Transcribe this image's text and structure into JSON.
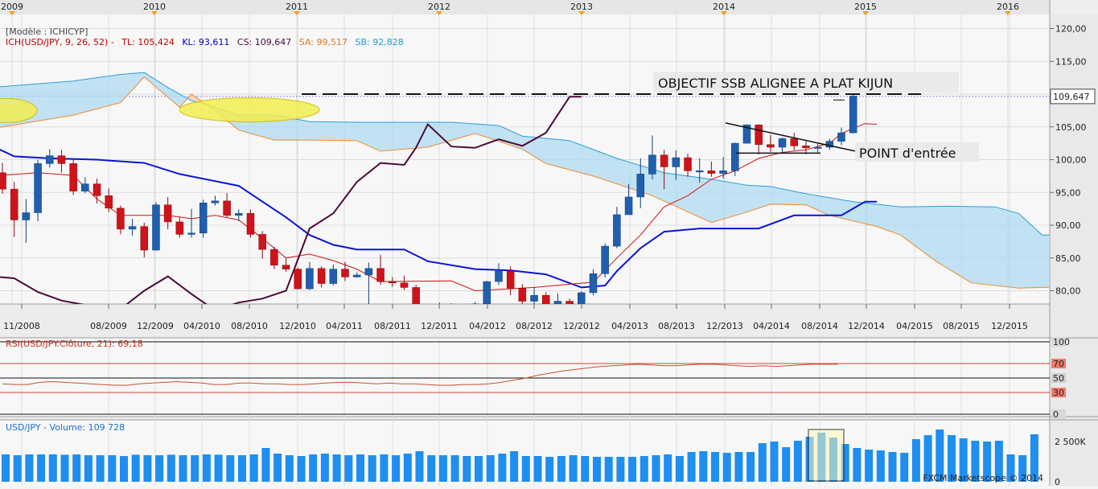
{
  "chart_data": {
    "type": "candlestick",
    "instrument": "USD/JPY",
    "timeframe_top_labels": [
      "2009",
      "2010",
      "2011",
      "2012",
      "2013",
      "2014",
      "2015",
      "2016"
    ],
    "x_tick_labels": [
      "11/2008",
      "08/2009",
      "12/2009",
      "04/2010",
      "08/2010",
      "12/2010",
      "04/2011",
      "08/2011",
      "12/2011",
      "04/2012",
      "08/2012",
      "12/2012",
      "04/2013",
      "08/2013",
      "12/2013",
      "04/2014",
      "08/2014",
      "12/2014",
      "04/2015",
      "08/2015",
      "12/2015"
    ],
    "price_axis": {
      "ticks": [
        "120,00",
        "115,00",
        "110,00",
        "105,00",
        "100,00",
        "95,00",
        "90,00",
        "85,00",
        "80,00"
      ],
      "ylim": [
        77.5,
        121.5
      ],
      "current_label": "109,647"
    },
    "legend": {
      "model": "[Modèle : ICHICYP]",
      "ich": "ICH(USD/JPY, 9, 26, 52) -",
      "tl": "TL: 105,424",
      "kl": "KL: 93,611",
      "cs": "CS: 109,647",
      "sa": "SA: 99,517",
      "sb": "SB: 92,828"
    },
    "candles": [
      [
        0,
        98,
        95.5,
        99.5,
        94.8
      ],
      [
        1,
        95.5,
        90.8,
        96.6,
        88.2
      ],
      [
        2,
        90.8,
        91.9,
        94,
        87.3
      ],
      [
        3,
        91.9,
        99.4,
        100,
        90.6
      ],
      [
        4,
        99.4,
        100.6,
        101.6,
        98.8
      ],
      [
        5,
        100.6,
        99.4,
        101.5,
        98
      ],
      [
        6,
        99.4,
        95.2,
        100,
        94.6
      ],
      [
        7,
        95.2,
        96.3,
        97.3,
        94.9
      ],
      [
        8,
        96.3,
        94.5,
        97.1,
        93.3
      ],
      [
        9,
        94.5,
        92.6,
        95.6,
        92
      ],
      [
        10,
        92.6,
        89.4,
        93,
        88.6
      ],
      [
        11,
        89.4,
        89.8,
        91,
        88.4
      ],
      [
        12,
        89.8,
        86.2,
        90.4,
        85.1
      ],
      [
        13,
        86.2,
        93.1,
        93.5,
        86.1
      ],
      [
        14,
        93.1,
        90.5,
        94.3,
        89.4
      ],
      [
        15,
        90.5,
        88.6,
        91.2,
        88.1
      ],
      [
        16,
        88.6,
        88.8,
        92.5,
        88.1
      ],
      [
        17,
        88.8,
        93.4,
        93.9,
        88.1
      ],
      [
        18,
        93.4,
        93.7,
        94.5,
        93
      ],
      [
        19,
        93.7,
        91.5,
        94.9,
        91.2
      ],
      [
        20,
        91.5,
        91.8,
        92.4,
        90.6
      ],
      [
        21,
        91.8,
        88.6,
        92.4,
        88.1
      ],
      [
        22,
        88.6,
        86.3,
        89.1,
        84.9
      ],
      [
        23,
        86.3,
        83.9,
        86.7,
        83.3
      ],
      [
        24,
        83.9,
        83.3,
        84.9,
        82.9
      ],
      [
        25,
        83.3,
        80.3,
        83.5,
        80.2
      ],
      [
        26,
        80.3,
        83.4,
        84.4,
        80.1
      ],
      [
        27,
        83.4,
        81.1,
        83.7,
        80.5
      ],
      [
        28,
        81.1,
        83.3,
        84,
        80.8
      ],
      [
        29,
        83.3,
        82.1,
        84.4,
        81.5
      ],
      [
        30,
        82.1,
        82.4,
        82.8,
        82
      ],
      [
        31,
        82.4,
        83.4,
        84.3,
        77.5
      ],
      [
        32,
        83.4,
        81.4,
        85.5,
        80.9
      ],
      [
        33,
        81.4,
        81.2,
        82.1,
        80.6
      ],
      [
        34,
        81.2,
        80.5,
        82.3,
        80.1
      ],
      [
        35,
        80.5,
        76.6,
        80.9,
        76.3
      ],
      [
        36,
        76.6,
        77,
        77.5,
        75.6
      ],
      [
        37,
        77,
        77.4,
        78.2,
        76.6
      ],
      [
        38,
        77.4,
        77.2,
        78.1,
        76.5
      ],
      [
        39,
        77.2,
        76.8,
        77.7,
        76.4
      ],
      [
        40,
        76.8,
        78,
        78.3,
        76.5
      ],
      [
        41,
        78,
        81.4,
        81.5,
        77.6
      ],
      [
        42,
        81.4,
        83,
        84.2,
        80.9
      ],
      [
        43,
        83,
        80.4,
        83.7,
        79.3
      ],
      [
        44,
        80.4,
        78.4,
        81,
        78
      ],
      [
        45,
        78.4,
        79.3,
        80.6,
        77.4
      ],
      [
        46,
        79.3,
        77.9,
        79.8,
        77.2
      ],
      [
        47,
        77.9,
        78.4,
        79.6,
        77.4
      ],
      [
        48,
        78.4,
        77.9,
        78.8,
        77.1
      ],
      [
        49,
        77.9,
        79.7,
        79.9,
        77.5
      ],
      [
        50,
        79.7,
        82.6,
        83.3,
        79.3
      ],
      [
        51,
        82.6,
        86.8,
        87.2,
        82
      ],
      [
        52,
        86.8,
        91.6,
        92.8,
        86.5
      ],
      [
        53,
        91.6,
        94.3,
        96.3,
        91.6
      ],
      [
        54,
        94.3,
        97.8,
        100.2,
        92.6
      ],
      [
        55,
        97.8,
        100.7,
        103.7,
        97
      ],
      [
        56,
        100.7,
        98.9,
        101.5,
        95.5
      ],
      [
        57,
        98.9,
        100.3,
        101.4,
        96.9
      ],
      [
        58,
        100.3,
        98.3,
        100.9,
        97.4
      ],
      [
        59,
        98.3,
        98.3,
        100.2,
        96.5
      ],
      [
        60,
        98.3,
        97.9,
        99.7,
        97.4
      ],
      [
        61,
        97.9,
        98.3,
        100.4,
        97.1
      ],
      [
        62,
        98.3,
        102.5,
        102.6,
        97.5
      ],
      [
        63,
        102.5,
        105.3,
        105.4,
        102.5
      ],
      [
        64,
        105.3,
        102.3,
        105.4,
        100.8
      ],
      [
        65,
        102.3,
        101.9,
        103.8,
        101.2
      ],
      [
        66,
        101.9,
        103.2,
        103.4,
        101.1
      ],
      [
        67,
        103.2,
        102.1,
        104.1,
        101.4
      ],
      [
        68,
        102.1,
        101.8,
        102.8,
        100.8
      ],
      [
        69,
        101.8,
        101.9,
        102.4,
        101.1
      ],
      [
        70,
        101.9,
        102.8,
        103.2,
        101.5
      ],
      [
        71,
        102.8,
        104.1,
        104.9,
        102.2
      ],
      [
        72,
        104.1,
        109.7,
        110.1,
        104
      ]
    ],
    "tenkan": [
      [
        -1,
        97.5
      ],
      [
        3,
        98
      ],
      [
        6,
        97.6
      ],
      [
        8,
        94
      ],
      [
        10,
        91.5
      ],
      [
        14,
        91.5
      ],
      [
        16,
        91
      ],
      [
        18,
        91.5
      ],
      [
        20,
        90.8
      ],
      [
        22,
        88
      ],
      [
        24,
        85
      ],
      [
        26,
        85.6
      ],
      [
        28,
        84.6
      ],
      [
        30,
        83.3
      ],
      [
        32,
        81.4
      ],
      [
        38,
        81.5
      ],
      [
        40,
        80
      ],
      [
        45,
        80.5
      ],
      [
        48,
        81
      ],
      [
        50,
        81.3
      ],
      [
        52,
        85
      ],
      [
        54,
        88.5
      ],
      [
        56,
        92.8
      ],
      [
        58,
        94.5
      ],
      [
        60,
        97
      ],
      [
        62,
        98.3
      ],
      [
        64,
        100.2
      ],
      [
        66,
        101.1
      ],
      [
        68,
        101.5
      ],
      [
        70,
        102.5
      ],
      [
        71,
        104
      ],
      [
        73,
        105.5
      ],
      [
        74,
        105.4
      ]
    ],
    "kijun": [
      [
        -1,
        102.2
      ],
      [
        1,
        100.5
      ],
      [
        4,
        100.2
      ],
      [
        8,
        100
      ],
      [
        12,
        99.5
      ],
      [
        15,
        97.8
      ],
      [
        20,
        96
      ],
      [
        24,
        91.2
      ],
      [
        26,
        88.5
      ],
      [
        28,
        87
      ],
      [
        30,
        86.3
      ],
      [
        34,
        86.3
      ],
      [
        36,
        84.5
      ],
      [
        40,
        83.3
      ],
      [
        43,
        83.1
      ],
      [
        46,
        82.5
      ],
      [
        49,
        80.5
      ],
      [
        51,
        80.8
      ],
      [
        52,
        83
      ],
      [
        54,
        86.5
      ],
      [
        56,
        89
      ],
      [
        59,
        89.5
      ],
      [
        64,
        89.5
      ],
      [
        67,
        91.5
      ],
      [
        71,
        91.5
      ],
      [
        73,
        93.6
      ],
      [
        74,
        93.6
      ]
    ],
    "chikou": [
      [
        -1,
        82.2
      ],
      [
        1,
        81.9
      ],
      [
        3,
        79.8
      ],
      [
        5,
        78.5
      ],
      [
        8,
        77.5
      ],
      [
        10,
        77.2
      ],
      [
        12,
        80
      ],
      [
        14,
        82.2
      ],
      [
        16,
        79.5
      ],
      [
        18,
        77
      ],
      [
        20,
        78.2
      ],
      [
        22,
        78.8
      ],
      [
        24,
        80
      ],
      [
        26,
        89.5
      ],
      [
        28,
        91.8
      ],
      [
        30,
        96.6
      ],
      [
        32,
        99.5
      ],
      [
        34,
        99.2
      ],
      [
        35,
        101.8
      ],
      [
        36,
        105.4
      ],
      [
        38,
        102
      ],
      [
        40,
        101.8
      ],
      [
        42,
        103.1
      ],
      [
        44,
        102.1
      ],
      [
        46,
        104.1
      ],
      [
        48,
        109.6
      ],
      [
        49,
        109.6
      ]
    ],
    "senkou_a": [
      [
        -1,
        104.7
      ],
      [
        6,
        106.8
      ],
      [
        10,
        108.7
      ],
      [
        12,
        112.6
      ],
      [
        15,
        108
      ],
      [
        16,
        110
      ],
      [
        18,
        107.5
      ],
      [
        20,
        104.5
      ],
      [
        23,
        103
      ],
      [
        26,
        103
      ],
      [
        30,
        102.9
      ],
      [
        32,
        101.3
      ],
      [
        36,
        101.9
      ],
      [
        40,
        104
      ],
      [
        44,
        101.6
      ],
      [
        46,
        99.4
      ],
      [
        50,
        97.5
      ],
      [
        55,
        94.5
      ],
      [
        60,
        90.4
      ],
      [
        63,
        92
      ],
      [
        65,
        93.2
      ],
      [
        68,
        93.1
      ],
      [
        70,
        91.5
      ],
      [
        74,
        89.8
      ],
      [
        76,
        88.5
      ],
      [
        79,
        84.5
      ],
      [
        82,
        81.2
      ],
      [
        86,
        80.4
      ],
      [
        90,
        80.6
      ],
      [
        93,
        82.6
      ],
      [
        96,
        86
      ],
      [
        98,
        89
      ],
      [
        102,
        90.2
      ],
      [
        106,
        91.5
      ],
      [
        110,
        93.3
      ],
      [
        112,
        94.2
      ],
      [
        114,
        95
      ],
      [
        114.5,
        95
      ]
    ],
    "senkou_b": [
      [
        -1,
        111
      ],
      [
        6,
        112
      ],
      [
        10,
        113
      ],
      [
        12,
        113.3
      ],
      [
        14,
        111
      ],
      [
        16,
        109
      ],
      [
        18,
        108
      ],
      [
        20,
        106.8
      ],
      [
        23,
        106.8
      ],
      [
        26,
        105.8
      ],
      [
        30,
        105.7
      ],
      [
        34,
        105.7
      ],
      [
        38,
        105.7
      ],
      [
        42,
        105.2
      ],
      [
        44,
        103.6
      ],
      [
        48,
        102.9
      ],
      [
        52,
        100.2
      ],
      [
        56,
        98
      ],
      [
        60,
        97
      ],
      [
        63,
        96.1
      ],
      [
        65,
        95.9
      ],
      [
        68,
        94.8
      ],
      [
        72,
        93.6
      ],
      [
        76,
        92.8
      ],
      [
        80,
        92.9
      ],
      [
        84,
        92.8
      ],
      [
        86,
        91.8
      ],
      [
        88,
        88.5
      ],
      [
        90,
        88.5
      ],
      [
        92,
        88.7
      ],
      [
        95,
        89.4
      ],
      [
        100,
        89.4
      ],
      [
        104,
        89.4
      ],
      [
        108,
        89.4
      ],
      [
        111,
        89.4
      ],
      [
        112,
        90.4
      ],
      [
        114.5,
        90.4
      ]
    ],
    "annotations": {
      "target_label": "OBJECTIF SSB ALIGNEE A PLAT KIJUN",
      "entry_label": "POINT d'entrée"
    },
    "rsi": {
      "label": "RSI(USD/JPY.Clôture, 21): 69,18",
      "levels": [
        "100",
        "70",
        "50",
        "30",
        "0"
      ],
      "values": [
        42,
        41,
        41,
        44,
        45,
        44,
        43,
        42,
        41,
        40,
        40,
        42,
        43,
        44,
        45,
        44,
        43,
        41,
        41,
        43,
        43,
        42,
        42,
        41,
        41,
        42,
        43,
        44,
        44,
        43,
        42,
        43,
        42,
        42,
        41,
        40,
        40,
        41,
        41,
        42,
        44,
        47,
        50,
        54,
        57,
        60,
        62,
        64,
        66,
        67,
        68,
        69,
        68,
        67,
        67,
        68,
        69,
        69,
        68,
        67,
        66,
        67,
        66,
        67,
        68,
        69,
        69,
        69
      ]
    },
    "volume": {
      "label": "USD/JPY - Volume: 109 728",
      "axis_label": "2 500K",
      "axis_zero": "0",
      "values": [
        1700,
        1650,
        1700,
        1700,
        1700,
        1680,
        1700,
        1650,
        1650,
        1650,
        1600,
        1680,
        1650,
        1650,
        1680,
        1650,
        1650,
        1700,
        1680,
        1650,
        1650,
        1700,
        2100,
        1750,
        1650,
        1600,
        1700,
        1750,
        1700,
        1650,
        1700,
        1650,
        1700,
        1650,
        1750,
        1900,
        1650,
        1650,
        1650,
        1600,
        1600,
        1650,
        1750,
        1900,
        1600,
        1600,
        1550,
        1600,
        1650,
        1600,
        1550,
        1550,
        1550,
        1550,
        1600,
        1650,
        1700,
        1600,
        1850,
        1900,
        1850,
        1800,
        1850,
        1850,
        2400,
        2500,
        2150,
        2550,
        2800,
        3050,
        2750,
        2350,
        2100,
        2000,
        1950,
        1850,
        1800,
        2650,
        2900,
        3250,
        2900,
        2700,
        2550,
        2500,
        2550,
        1700,
        1650,
        2950
      ]
    },
    "footer": "FXCM Marketscope © 2014"
  }
}
